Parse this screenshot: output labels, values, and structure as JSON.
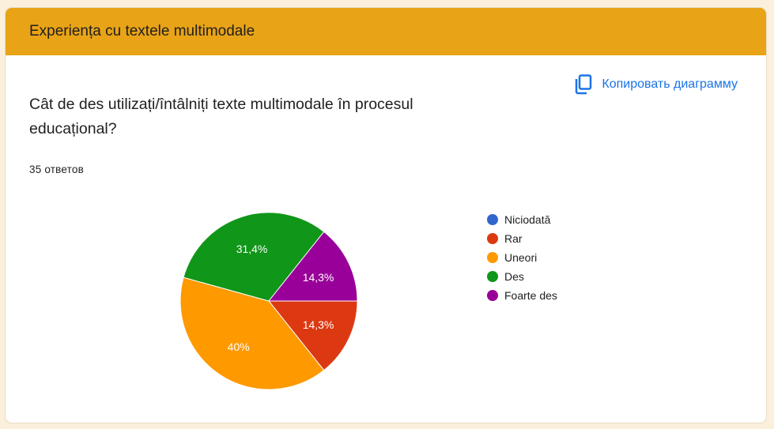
{
  "section": {
    "title": "Experiența cu textele multimodale"
  },
  "question": {
    "text": "Cât de des utilizați/întâlniți texte multimodale în procesul educațional?"
  },
  "responses": {
    "count_text": "35 ответов"
  },
  "copy_button": {
    "label": "Копировать диаграмму",
    "icon": "copy-icon"
  },
  "colors": {
    "header": "#e8a317",
    "accent": "#1a73e8"
  },
  "chart_data": {
    "type": "pie",
    "slices": [
      {
        "label": "Niciodată",
        "value": 0,
        "percent_label": "",
        "color": "#3366cc"
      },
      {
        "label": "Rar",
        "value": 14.3,
        "percent_label": "14,3%",
        "color": "#dc3912"
      },
      {
        "label": "Uneori",
        "value": 40,
        "percent_label": "40%",
        "color": "#ff9900"
      },
      {
        "label": "Des",
        "value": 31.4,
        "percent_label": "31,4%",
        "color": "#109618"
      },
      {
        "label": "Foarte des",
        "value": 14.3,
        "percent_label": "14,3%",
        "color": "#990099"
      }
    ],
    "legend_position": "right"
  }
}
